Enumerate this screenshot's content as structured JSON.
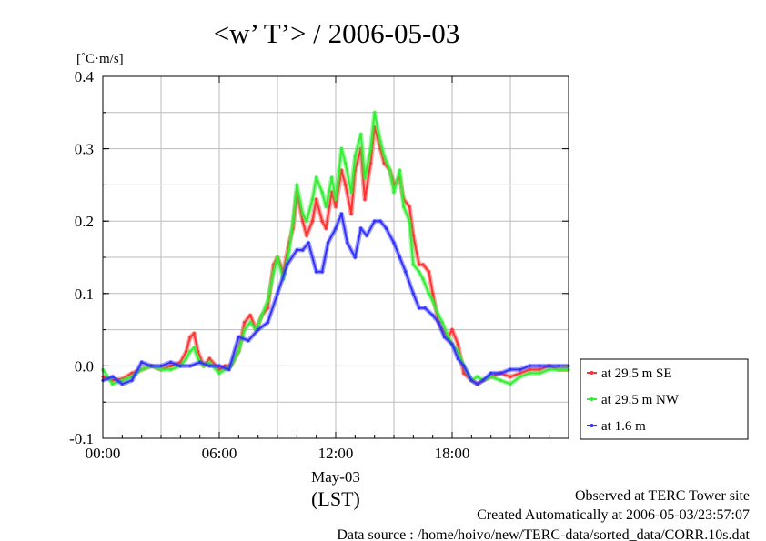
{
  "chart_data": {
    "type": "line",
    "title": "<w’ T’> / 2006-05-03",
    "ylabel_unit": "[˚C·m/s]",
    "ylim": [
      -0.1,
      0.4
    ],
    "xlim_hours": [
      0,
      24
    ],
    "y_ticks": [
      -0.1,
      0.0,
      0.1,
      0.2,
      0.3,
      0.4
    ],
    "y_tick_labels": [
      "-0.1",
      "0.0",
      "0.1",
      "0.2",
      "0.3",
      "0.4"
    ],
    "x_ticks_hours": [
      0,
      6,
      12,
      18
    ],
    "x_tick_labels": [
      "00:00",
      "06:00",
      "12:00",
      "18:00"
    ],
    "x_date_label": "May-03",
    "x_timezone_label": "(LST)",
    "grid": true,
    "legend_position": "right",
    "series": [
      {
        "name": "at 29.5 m SE",
        "color": "#ff3333",
        "x": [
          0,
          0.5,
          1,
          1.5,
          2,
          2.5,
          3,
          3.5,
          4,
          4.3,
          4.5,
          4.7,
          4.9,
          5.2,
          5.5,
          6,
          6.3,
          6.6,
          7,
          7.3,
          7.6,
          7.9,
          8.2,
          8.5,
          8.8,
          9,
          9.3,
          9.6,
          9.8,
          10,
          10.3,
          10.5,
          10.8,
          11,
          11.3,
          11.5,
          11.8,
          12,
          12.3,
          12.5,
          12.8,
          13,
          13.3,
          13.5,
          13.8,
          14,
          14.3,
          14.5,
          14.8,
          15,
          15.3,
          15.5,
          15.8,
          16,
          16.3,
          16.5,
          16.8,
          17,
          17.3,
          17.5,
          17.8,
          18,
          18.3,
          18.6,
          19,
          19.3,
          19.6,
          20,
          20.5,
          21,
          21.5,
          22,
          22.5,
          23,
          23.5,
          24
        ],
        "values": [
          -0.015,
          -0.02,
          -0.018,
          -0.01,
          -0.005,
          0.0,
          -0.005,
          0.0,
          0.005,
          0.02,
          0.04,
          0.045,
          0.02,
          0.0,
          0.01,
          -0.005,
          0.0,
          0.0,
          0.02,
          0.06,
          0.07,
          0.05,
          0.07,
          0.08,
          0.14,
          0.15,
          0.13,
          0.17,
          0.19,
          0.24,
          0.2,
          0.18,
          0.2,
          0.23,
          0.2,
          0.19,
          0.24,
          0.22,
          0.27,
          0.25,
          0.21,
          0.27,
          0.3,
          0.23,
          0.28,
          0.33,
          0.3,
          0.28,
          0.27,
          0.25,
          0.26,
          0.23,
          0.22,
          0.18,
          0.14,
          0.14,
          0.13,
          0.1,
          0.06,
          0.05,
          0.04,
          0.05,
          0.03,
          -0.01,
          -0.02,
          -0.025,
          -0.02,
          -0.015,
          -0.01,
          -0.015,
          -0.01,
          -0.005,
          -0.005,
          0.0,
          -0.005,
          -0.005
        ]
      },
      {
        "name": "at 29.5 m NW",
        "color": "#33ee33",
        "x": [
          0,
          0.5,
          1,
          1.5,
          2,
          2.5,
          3,
          3.5,
          4,
          4.3,
          4.5,
          4.7,
          4.9,
          5.2,
          5.5,
          6,
          6.3,
          6.6,
          7,
          7.3,
          7.6,
          7.9,
          8.2,
          8.5,
          8.8,
          9,
          9.3,
          9.6,
          9.8,
          10,
          10.3,
          10.5,
          10.8,
          11,
          11.3,
          11.5,
          11.8,
          12,
          12.3,
          12.5,
          12.8,
          13,
          13.3,
          13.5,
          13.8,
          14,
          14.3,
          14.5,
          14.8,
          15,
          15.3,
          15.5,
          15.8,
          16,
          16.3,
          16.5,
          16.8,
          17,
          17.3,
          17.5,
          17.8,
          18,
          18.3,
          18.6,
          19,
          19.3,
          19.6,
          20,
          20.5,
          21,
          21.5,
          22,
          22.5,
          23,
          23.5,
          24
        ],
        "values": [
          -0.005,
          -0.025,
          -0.02,
          -0.015,
          -0.005,
          0.0,
          -0.005,
          -0.005,
          0.0,
          0.01,
          0.02,
          0.025,
          0.01,
          0.0,
          0.005,
          -0.01,
          -0.005,
          0.0,
          0.02,
          0.05,
          0.06,
          0.05,
          0.07,
          0.09,
          0.13,
          0.15,
          0.12,
          0.16,
          0.2,
          0.25,
          0.21,
          0.2,
          0.23,
          0.26,
          0.24,
          0.22,
          0.26,
          0.23,
          0.3,
          0.28,
          0.24,
          0.29,
          0.32,
          0.26,
          0.3,
          0.35,
          0.31,
          0.29,
          0.27,
          0.24,
          0.27,
          0.22,
          0.2,
          0.14,
          0.13,
          0.12,
          0.1,
          0.09,
          0.07,
          0.06,
          0.04,
          0.03,
          0.02,
          0.0,
          -0.02,
          -0.015,
          -0.02,
          -0.015,
          -0.02,
          -0.025,
          -0.015,
          -0.01,
          -0.01,
          -0.005,
          -0.005,
          -0.005
        ]
      },
      {
        "name": "at 1.6 m",
        "color": "#3333ff",
        "x": [
          0,
          0.5,
          1,
          1.5,
          2,
          2.5,
          3,
          3.5,
          4,
          4.5,
          5,
          5.5,
          6,
          6.5,
          7,
          7.5,
          8,
          8.5,
          9,
          9.5,
          10,
          10.3,
          10.6,
          11,
          11.3,
          11.6,
          12,
          12.3,
          12.6,
          13,
          13.3,
          13.6,
          14,
          14.3,
          14.6,
          15,
          15.3,
          15.6,
          16,
          16.3,
          16.6,
          17,
          17.3,
          17.6,
          18,
          18.3,
          18.6,
          19,
          19.3,
          19.6,
          20,
          20.5,
          21,
          21.5,
          22,
          22.5,
          23,
          23.5,
          24
        ],
        "values": [
          -0.02,
          -0.015,
          -0.025,
          -0.02,
          0.005,
          0.0,
          0.0,
          0.005,
          0.0,
          0.0,
          0.005,
          0.0,
          0.0,
          -0.005,
          0.04,
          0.035,
          0.05,
          0.06,
          0.1,
          0.14,
          0.16,
          0.16,
          0.17,
          0.13,
          0.13,
          0.17,
          0.19,
          0.21,
          0.17,
          0.15,
          0.19,
          0.18,
          0.2,
          0.2,
          0.19,
          0.17,
          0.15,
          0.13,
          0.1,
          0.08,
          0.08,
          0.07,
          0.06,
          0.04,
          0.03,
          0.01,
          0.0,
          -0.02,
          -0.025,
          -0.02,
          -0.01,
          -0.01,
          -0.005,
          -0.005,
          0.0,
          0.0,
          0.0,
          0.0,
          0.0
        ]
      }
    ]
  },
  "footer": {
    "line1": "Observed at TERC Tower site",
    "line2": "Created Automatically at 2006-05-03/23:57:07",
    "line3": "Data source : /home/hoivo/new/TERC-data/sorted_data/CORR.10s.dat"
  }
}
